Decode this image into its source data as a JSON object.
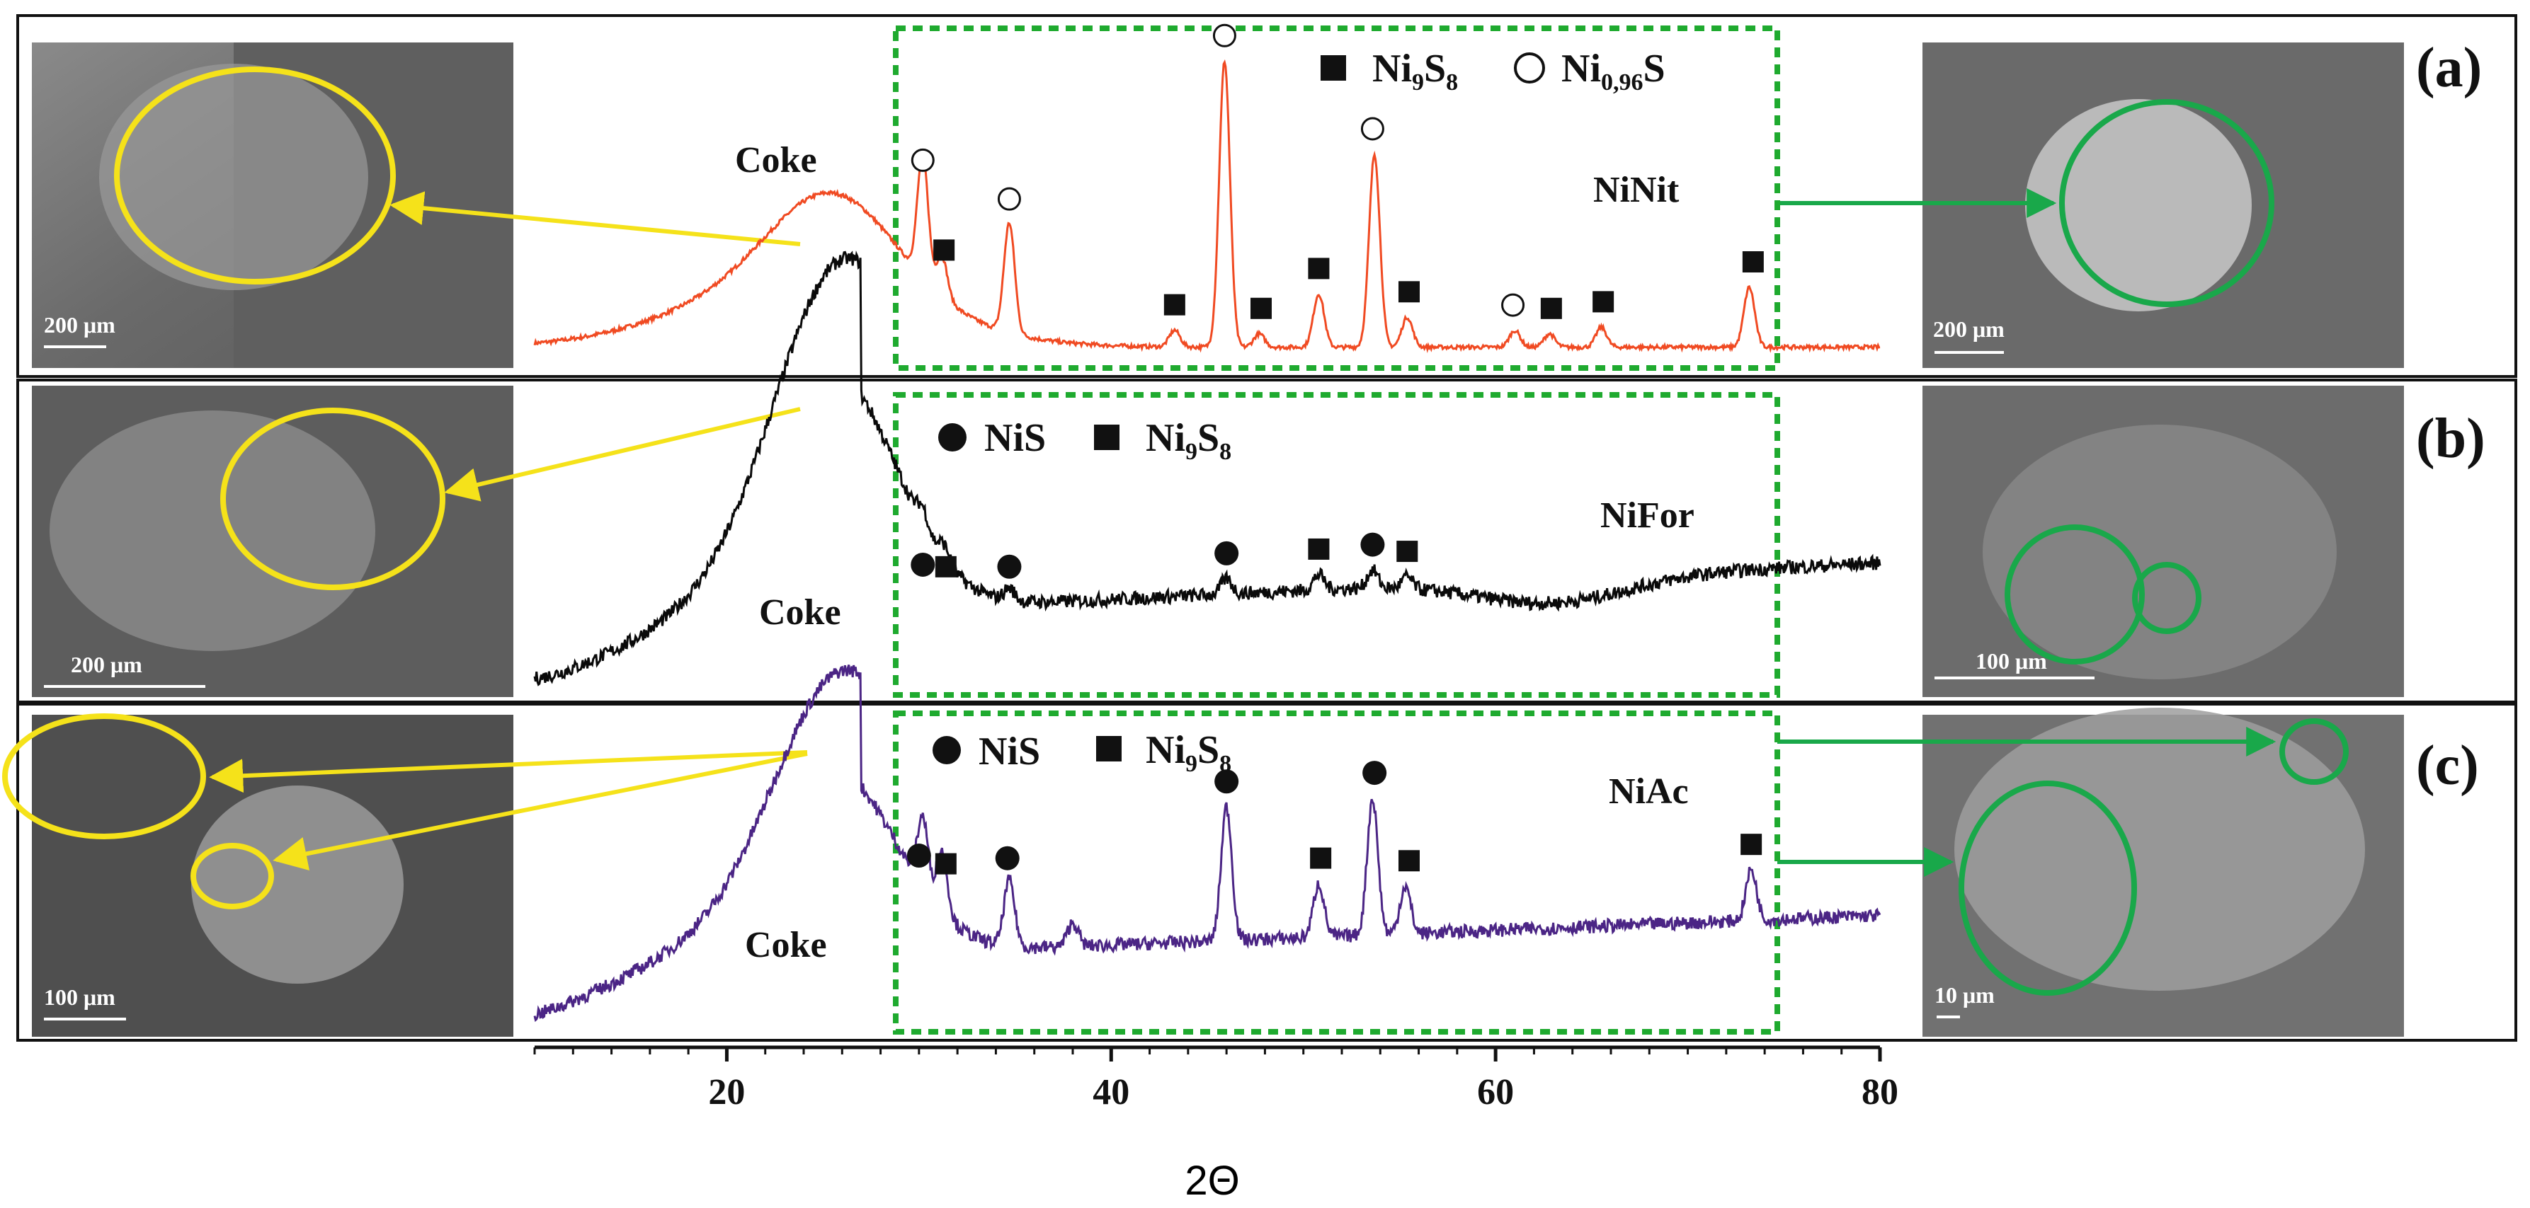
{
  "chart_data": {
    "type": "line",
    "title": "",
    "xlabel": "2Θ",
    "ylabel": "",
    "xlim": [
      10,
      80
    ],
    "x_ticks": [
      "20",
      "40",
      "60",
      "80"
    ],
    "ylim": [
      0,
      1
    ],
    "series": [
      {
        "name": "NiNit",
        "panel": "(a)",
        "color": "#f04a22",
        "peaks": [
          {
            "x": 25.6,
            "h": 0.27
          },
          {
            "x": 30.2,
            "h": 0.37
          },
          {
            "x": 31.2,
            "h": 0.12
          },
          {
            "x": 34.7,
            "h": 0.33
          },
          {
            "x": 43.3,
            "h": 0.05
          },
          {
            "x": 45.9,
            "h": 0.86
          },
          {
            "x": 47.7,
            "h": 0.04
          },
          {
            "x": 50.8,
            "h": 0.16
          },
          {
            "x": 53.7,
            "h": 0.58
          },
          {
            "x": 55.4,
            "h": 0.09
          },
          {
            "x": 61.0,
            "h": 0.05
          },
          {
            "x": 62.8,
            "h": 0.04
          },
          {
            "x": 65.5,
            "h": 0.06
          },
          {
            "x": 73.2,
            "h": 0.18
          }
        ],
        "markers": [
          {
            "type": "Ni0.96S",
            "x": 30.2
          },
          {
            "type": "Ni9S8",
            "x": 31.3
          },
          {
            "type": "Ni0.96S",
            "x": 34.7
          },
          {
            "type": "Ni9S8",
            "x": 43.3
          },
          {
            "type": "Ni0.96S",
            "x": 45.9
          },
          {
            "type": "Ni9S8",
            "x": 47.8
          },
          {
            "type": "Ni9S8",
            "x": 50.8
          },
          {
            "type": "Ni0.96S",
            "x": 53.6
          },
          {
            "type": "Ni9S8",
            "x": 55.5
          },
          {
            "type": "Ni0.96S",
            "x": 60.9
          },
          {
            "type": "Ni9S8",
            "x": 62.9
          },
          {
            "type": "Ni9S8",
            "x": 65.6
          },
          {
            "type": "Ni9S8",
            "x": 73.4
          }
        ]
      },
      {
        "name": "NiFor",
        "panel": "(b)",
        "color": "#0a0a0a",
        "peaks": [
          {
            "x": 25.6,
            "h": 0.78
          },
          {
            "x": 30.2,
            "h": 0.06
          },
          {
            "x": 31.3,
            "h": 0.05
          },
          {
            "x": 34.7,
            "h": 0.04
          },
          {
            "x": 46.0,
            "h": 0.05
          },
          {
            "x": 50.8,
            "h": 0.05
          },
          {
            "x": 53.6,
            "h": 0.06
          },
          {
            "x": 55.4,
            "h": 0.04
          }
        ],
        "markers": [
          {
            "type": "NiS",
            "x": 30.2
          },
          {
            "type": "Ni9S8",
            "x": 31.4
          },
          {
            "type": "NiS",
            "x": 34.7
          },
          {
            "type": "NiS",
            "x": 46.0
          },
          {
            "type": "Ni9S8",
            "x": 50.8
          },
          {
            "type": "NiS",
            "x": 53.6
          },
          {
            "type": "Ni9S8",
            "x": 55.4
          }
        ]
      },
      {
        "name": "NiAc",
        "panel": "(c)",
        "color": "#4b2585",
        "peaks": [
          {
            "x": 25.6,
            "h": 0.62
          },
          {
            "x": 30.2,
            "h": 0.24
          },
          {
            "x": 31.2,
            "h": 0.21
          },
          {
            "x": 34.7,
            "h": 0.22
          },
          {
            "x": 38.0,
            "h": 0.08
          },
          {
            "x": 46.0,
            "h": 0.45
          },
          {
            "x": 50.8,
            "h": 0.18
          },
          {
            "x": 53.6,
            "h": 0.46
          },
          {
            "x": 55.3,
            "h": 0.16
          },
          {
            "x": 73.3,
            "h": 0.17
          }
        ],
        "markers": [
          {
            "type": "NiS",
            "x": 30.0
          },
          {
            "type": "Ni9S8",
            "x": 31.4
          },
          {
            "type": "NiS",
            "x": 34.6
          },
          {
            "type": "NiS",
            "x": 46.0
          },
          {
            "type": "Ni9S8",
            "x": 50.9
          },
          {
            "type": "NiS",
            "x": 53.7
          },
          {
            "type": "Ni9S8",
            "x": 55.5
          },
          {
            "type": "Ni9S8",
            "x": 73.3
          }
        ]
      }
    ]
  },
  "panels": [
    {
      "letter": "(a)",
      "sample": "NiNit",
      "coke_label": "Coke",
      "legend": [
        {
          "symbol": "square",
          "name": "Ni",
          "sub1": "9",
          "mid": "S",
          "sub2": "8"
        },
        {
          "symbol": "circle-open",
          "name": "Ni",
          "sub1": "0,96",
          "mid": "S",
          "sub2": ""
        }
      ],
      "left_scale": "200 μm",
      "right_scale": "200 μm"
    },
    {
      "letter": "(b)",
      "sample": "NiFor",
      "coke_label": "Coke",
      "legend": [
        {
          "symbol": "circle-filled",
          "name": "NiS",
          "sub1": "",
          "mid": "",
          "sub2": ""
        },
        {
          "symbol": "square",
          "name": "Ni",
          "sub1": "9",
          "mid": "S",
          "sub2": "8"
        }
      ],
      "left_scale": "200 μm",
      "right_scale": "100 μm"
    },
    {
      "letter": "(c)",
      "sample": "NiAc",
      "coke_label": "Coke",
      "legend": [
        {
          "symbol": "circle-filled",
          "name": "NiS",
          "sub1": "",
          "mid": "",
          "sub2": ""
        },
        {
          "symbol": "square",
          "name": "Ni",
          "sub1": "9",
          "mid": "S",
          "sub2": "8"
        }
      ],
      "left_scale": "100 μm",
      "right_scale": "10 μm"
    }
  ],
  "colors": {
    "highlight_box": "#1faa2f",
    "yellow_annotation": "#f5e21a",
    "green_annotation": "#19a84a",
    "sem_background": "#6e6e6e"
  }
}
